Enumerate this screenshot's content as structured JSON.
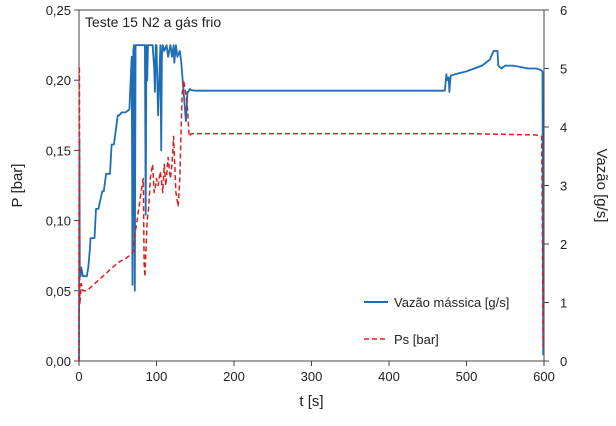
{
  "chart_data": {
    "type": "line",
    "title": "Teste 15 N2 a gás frio",
    "xlabel": "t [s]",
    "ylabel_left": "P [bar]",
    "ylabel_right": "Vazão [g/s]",
    "xlim": [
      0,
      600
    ],
    "ylim_left": [
      0,
      0.25
    ],
    "ylim_right": [
      0,
      6
    ],
    "x_ticks": [
      "0",
      "100",
      "200",
      "300",
      "400",
      "500",
      "600"
    ],
    "y_ticks_left": [
      "0,00",
      "0,05",
      "0,10",
      "0,15",
      "0,20",
      "0,25"
    ],
    "y_ticks_right": [
      "0",
      "1",
      "2",
      "3",
      "4",
      "5",
      "6"
    ],
    "grid": false,
    "legend_position": "bottom-right",
    "colors": {
      "series_0": "#1f6db5",
      "series_1": "#d6201f"
    },
    "series": [
      {
        "name": "Vazão mássica [g/s]",
        "axis": "right",
        "style": "solid",
        "x": [
          0,
          0.5,
          1,
          2,
          3,
          5,
          10,
          12,
          14,
          15,
          20,
          22,
          25,
          30,
          32,
          35,
          40,
          42,
          45,
          50,
          52,
          55,
          60,
          65,
          68,
          69,
          70,
          71,
          72,
          73,
          75,
          80,
          85,
          86,
          87,
          88,
          89,
          90,
          95,
          97,
          98,
          99,
          100,
          102,
          105,
          106,
          107,
          108,
          110,
          113,
          115,
          118,
          120,
          122,
          123,
          125,
          127,
          130,
          132,
          135,
          138,
          140,
          141,
          143,
          145,
          150,
          200,
          250,
          300,
          350,
          400,
          450,
          472,
          474,
          475,
          477,
          478,
          479,
          480,
          485,
          500,
          520,
          530,
          535,
          540,
          541,
          545,
          550,
          560,
          580,
          590,
          595,
          598,
          599
        ],
        "y": [
          0,
          3.8,
          1.45,
          1.45,
          1.6,
          1.45,
          1.45,
          1.6,
          1.9,
          2.1,
          2.1,
          2.6,
          2.6,
          2.9,
          2.9,
          3.2,
          3.2,
          3.7,
          3.7,
          4.2,
          4.2,
          4.25,
          4.25,
          4.3,
          5.2,
          1.3,
          5.3,
          5.4,
          1.2,
          5.4,
          5.4,
          5.4,
          5.4,
          2.5,
          5.4,
          4.8,
          5.4,
          5.4,
          5.4,
          5.0,
          4.6,
          5.4,
          5.4,
          4.2,
          5.4,
          3.6,
          5.2,
          5.4,
          5.3,
          5.4,
          5.2,
          5.4,
          5.2,
          5.4,
          5.1,
          5.4,
          5.2,
          5.3,
          5.1,
          4.6,
          4.1,
          4.6,
          4.6,
          4.65,
          4.63,
          4.62,
          4.62,
          4.62,
          4.62,
          4.62,
          4.62,
          4.62,
          4.62,
          4.9,
          4.8,
          4.85,
          4.6,
          4.8,
          4.88,
          4.9,
          4.95,
          5.05,
          5.15,
          5.3,
          5.3,
          5.05,
          5.0,
          5.05,
          5.05,
          5.0,
          5.0,
          4.98,
          4.95,
          0.1
        ]
      },
      {
        "name": "Ps [bar]",
        "axis": "left",
        "style": "dashed",
        "x": [
          0,
          0.5,
          1,
          3,
          5,
          10,
          20,
          30,
          40,
          50,
          60,
          65,
          70,
          72,
          75,
          80,
          83,
          84,
          85,
          86,
          88,
          90,
          92,
          95,
          97,
          99,
          100,
          102,
          105,
          108,
          110,
          112,
          115,
          118,
          120,
          122,
          125,
          128,
          130,
          133,
          135,
          138,
          140,
          142,
          145,
          150,
          200,
          300,
          400,
          500,
          590,
          597,
          599
        ],
        "y": [
          0,
          0.21,
          0.04,
          0.055,
          0.05,
          0.05,
          0.055,
          0.06,
          0.065,
          0.07,
          0.073,
          0.075,
          0.078,
          0.09,
          0.1,
          0.12,
          0.13,
          0.07,
          0.06,
          0.075,
          0.1,
          0.11,
          0.13,
          0.14,
          0.12,
          0.125,
          0.13,
          0.125,
          0.135,
          0.12,
          0.14,
          0.125,
          0.145,
          0.13,
          0.14,
          0.16,
          0.12,
          0.11,
          0.13,
          0.19,
          0.2,
          0.19,
          0.18,
          0.16,
          0.162,
          0.162,
          0.162,
          0.162,
          0.162,
          0.162,
          0.161,
          0.16,
          0.01
        ]
      }
    ]
  }
}
